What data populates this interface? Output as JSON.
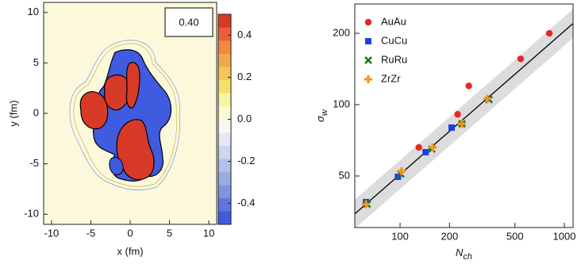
{
  "chart_data": [
    {
      "type": "contour",
      "xlabel": "x (fm)",
      "ylabel": "y (fm)",
      "annotation": "0.40",
      "xlim": [
        -11,
        11
      ],
      "ylim": [
        -11,
        11
      ],
      "xticks": [
        -10,
        -5,
        0,
        5,
        10
      ],
      "yticks": [
        -10,
        -5,
        0,
        5,
        10
      ],
      "colorbar": {
        "lim": [
          -0.5,
          0.5
        ],
        "ticks": [
          0.4,
          0.2,
          {
            "value": 0,
            "label": "0.0"
          },
          -0.2,
          -0.4
        ],
        "colors": [
          "#3f5be0",
          "#5d76dc",
          "#7f93e0",
          "#9aaae4",
          "#b4c0ea",
          "#cdd6f0",
          "#e5e9f5",
          "#f7f8f3",
          "#fbf8d2",
          "#faf4a0",
          "#f6df6b",
          "#f5c55a",
          "#f3a94a",
          "#f08a3c",
          "#e9603a",
          "#d73a27"
        ]
      }
    },
    {
      "type": "scatter",
      "log": true,
      "xlabel": {
        "main": "N",
        "sub": "ch"
      },
      "ylabel": {
        "main": "σ",
        "sub": "w"
      },
      "xlim": [
        53,
        1130
      ],
      "ylim": [
        30.3,
        266
      ],
      "xticks": [
        100,
        200,
        500,
        1000
      ],
      "yticks": [
        50,
        100,
        200
      ],
      "legend": "upper-left",
      "series": [
        {
          "name": "AuAu",
          "color": "#e8262a",
          "marker": "circle",
          "x": [
            130,
            224,
            262,
            542,
            810
          ],
          "values": [
            66,
            91,
            120,
            156,
            200
          ]
        },
        {
          "name": "CuCu",
          "color": "#1f3fe0",
          "marker": "square",
          "x": [
            62,
            97,
            143,
            206
          ],
          "values": [
            38.8,
            49.6,
            63,
            80
          ]
        },
        {
          "name": "RuRu",
          "color": "#1a7a1a",
          "marker": "x",
          "x": [
            63,
            101,
            156,
            238,
            348
          ],
          "values": [
            38,
            51,
            65,
            83,
            105
          ]
        },
        {
          "name": "ZrZr",
          "color": "#f7941d",
          "marker": "plus",
          "x": [
            62,
            102,
            158,
            238,
            340
          ],
          "values": [
            38,
            52.4,
            66,
            83,
            106
          ]
        }
      ],
      "fit": {
        "color": "#000000",
        "band_color": "#dcdcdc",
        "x": [
          53,
          1130
        ],
        "values": [
          34.6,
          220
        ],
        "upper": [
          39.7,
          253
        ],
        "lower": [
          30,
          191
        ]
      }
    }
  ]
}
